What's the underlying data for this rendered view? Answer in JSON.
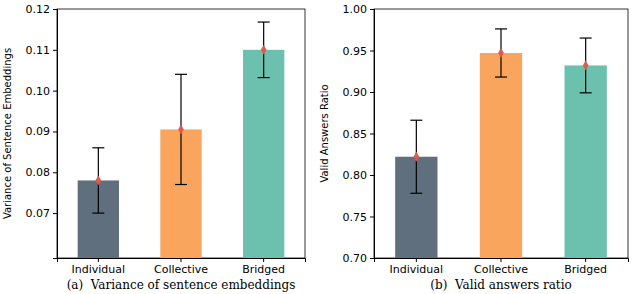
{
  "chart_data": [
    {
      "type": "bar",
      "title": "(a)  Variance of sentence embeddings",
      "y_label": "Variance of Sentence Embeddings",
      "categories": [
        "Individual",
        "Collective",
        "Bridged"
      ],
      "values": [
        0.078,
        0.0905,
        0.11
      ],
      "errors": [
        0.008,
        0.0135,
        0.0068
      ],
      "colors": [
        "#5f6f7e",
        "#f9a55e",
        "#6cc1ae"
      ],
      "marker": "diamond",
      "ylim": [
        0.059,
        0.12
      ],
      "yticks": [
        0.07,
        0.08,
        0.09,
        {
          "value": 0.1,
          "label": "0.10"
        },
        0.11,
        0.12
      ]
    },
    {
      "type": "bar",
      "title": "(b)  Valid answers ratio",
      "y_label": "Valid Answers Ratio",
      "categories": [
        "Individual",
        "Collective",
        "Bridged"
      ],
      "values": [
        0.822,
        0.947,
        0.932
      ],
      "errors": [
        0.044,
        0.029,
        0.033
      ],
      "colors": [
        "#5f6f7e",
        "#f9a55e",
        "#6cc1ae"
      ],
      "marker": "diamond",
      "ylim": [
        0.7,
        1.0
      ],
      "yticks": [
        {
          "value": 0.7,
          "label": "0.70"
        },
        0.75,
        {
          "value": 0.8,
          "label": "0.80"
        },
        0.85,
        {
          "value": 0.9,
          "label": "0.90"
        },
        0.95,
        {
          "value": 1.0,
          "label": "1.00"
        }
      ]
    }
  ]
}
